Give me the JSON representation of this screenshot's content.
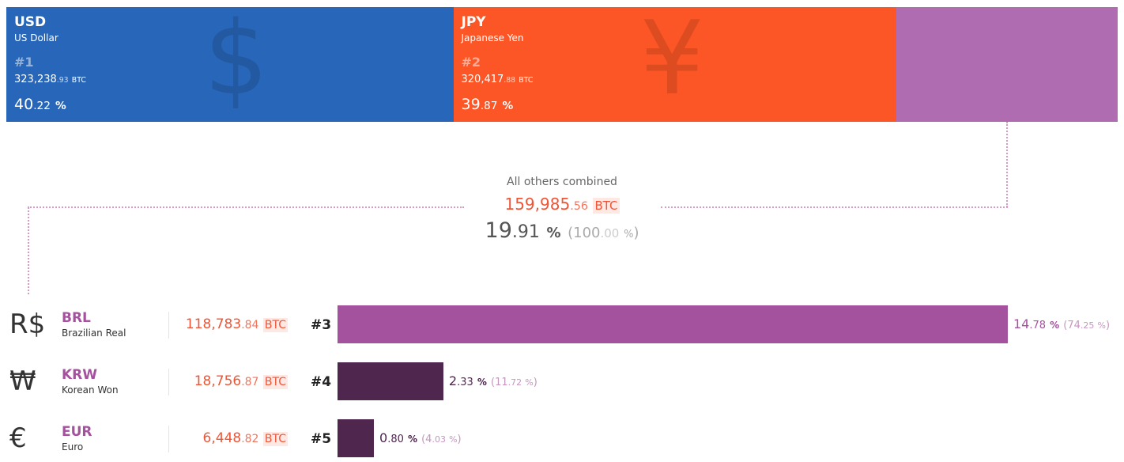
{
  "chart_data": {
    "type": "bar",
    "unit": "BTC",
    "top_segments": [
      {
        "code": "USD",
        "name": "US Dollar",
        "symbol": "$",
        "rank": "#1",
        "btc_main": "323,238",
        "btc_dec": ".93",
        "btc_unit": "BTC",
        "pct_main": "40",
        "pct_dec": ".22",
        "pct_sign": "%",
        "value": 323238.93,
        "share": 40.22,
        "color": "#2766b8"
      },
      {
        "code": "JPY",
        "name": "Japanese Yen",
        "symbol": "¥",
        "rank": "#2",
        "btc_main": "320,417",
        "btc_dec": ".88",
        "btc_unit": "BTC",
        "pct_main": "39",
        "pct_dec": ".87",
        "pct_sign": "%",
        "value": 320417.88,
        "share": 39.87,
        "color": "#fd5626"
      },
      {
        "code": "",
        "name": "",
        "value": 159985.56,
        "share": 19.91,
        "color": "#b06cb0"
      }
    ],
    "others": {
      "label": "All others combined",
      "btc_main": "159,985",
      "btc_dec": ".56",
      "btc_unit": "BTC",
      "pct_main": "19",
      "pct_dec": ".91",
      "pct_sign": "%",
      "total_open": "(",
      "total_main": "100",
      "total_dec": ".00",
      "total_sign": "%",
      "total_close": ")"
    },
    "rows": [
      {
        "symbol": "R$",
        "code": "BRL",
        "name": "Brazilian Real",
        "btc_main": "118,783",
        "btc_dec": ".84",
        "btc_unit": "BTC",
        "rank": "#3",
        "pct_main": "14",
        "pct_dec": ".78",
        "pct_sign": "%",
        "rel_open": "(",
        "rel_main": "74",
        "rel_dec": ".25",
        "rel_sign": "%",
        "rel_close": ")",
        "value": 118783.84,
        "share": 14.78,
        "share_of_others": 74.25,
        "bar_color": "#a4529d",
        "text_color": "#a4529d"
      },
      {
        "symbol": "₩",
        "code": "KRW",
        "name": "Korean Won",
        "btc_main": "18,756",
        "btc_dec": ".87",
        "btc_unit": "BTC",
        "rank": "#4",
        "pct_main": "2",
        "pct_dec": ".33",
        "pct_sign": "%",
        "rel_open": "(",
        "rel_main": "11",
        "rel_dec": ".72",
        "rel_sign": "%",
        "rel_close": ")",
        "value": 18756.87,
        "share": 2.33,
        "share_of_others": 11.72,
        "bar_color": "#4e264e",
        "text_color": "#4e264e"
      },
      {
        "symbol": "€",
        "code": "EUR",
        "name": "Euro",
        "btc_main": "6,448",
        "btc_dec": ".82",
        "btc_unit": "BTC",
        "rank": "#5",
        "pct_main": "0",
        "pct_dec": ".80",
        "pct_sign": "%",
        "rel_open": "(",
        "rel_main": "4",
        "rel_dec": ".03",
        "rel_sign": "%",
        "rel_close": ")",
        "value": 6448.82,
        "share": 0.8,
        "share_of_others": 4.03,
        "bar_color": "#4e264e",
        "text_color": "#4e264e"
      }
    ]
  }
}
